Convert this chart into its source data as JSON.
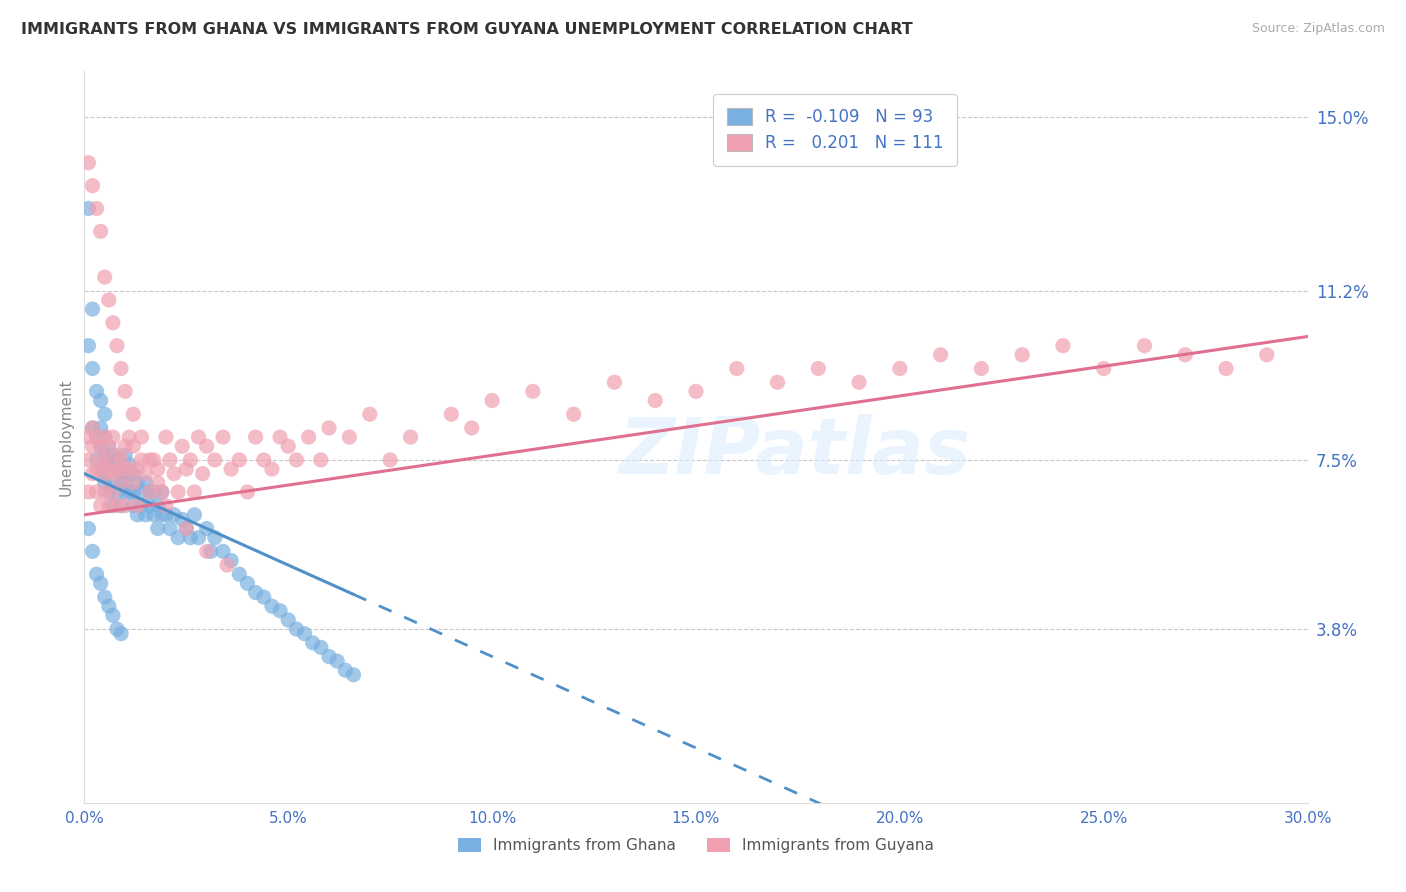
{
  "title": "IMMIGRANTS FROM GHANA VS IMMIGRANTS FROM GUYANA UNEMPLOYMENT CORRELATION CHART",
  "source": "Source: ZipAtlas.com",
  "ylabel": "Unemployment",
  "xlim": [
    0.0,
    0.3
  ],
  "ylim": [
    0.0,
    0.16
  ],
  "xticks": [
    0.0,
    0.05,
    0.1,
    0.15,
    0.2,
    0.25,
    0.3
  ],
  "xticklabels": [
    "0.0%",
    "5.0%",
    "10.0%",
    "15.0%",
    "20.0%",
    "25.0%",
    "30.0%"
  ],
  "yticks": [
    0.038,
    0.075,
    0.112,
    0.15
  ],
  "yticklabels": [
    "3.8%",
    "7.5%",
    "11.2%",
    "15.0%"
  ],
  "ghana_color": "#7ab0e0",
  "guyana_color": "#f0a0b0",
  "ghana_R": -0.109,
  "ghana_N": 93,
  "guyana_R": 0.201,
  "guyana_N": 111,
  "watermark": "ZIPatlas",
  "background_color": "#ffffff",
  "grid_color": "#c8c8c8",
  "axis_label_color": "#4472c4",
  "tick_color": "#4472c4",
  "ghana_line_color": "#5090c8",
  "guyana_line_color": "#e07090",
  "ghana_scatter_x": [
    0.001,
    0.001,
    0.002,
    0.002,
    0.002,
    0.003,
    0.003,
    0.003,
    0.004,
    0.004,
    0.004,
    0.004,
    0.005,
    0.005,
    0.005,
    0.005,
    0.005,
    0.006,
    0.006,
    0.006,
    0.006,
    0.007,
    0.007,
    0.007,
    0.007,
    0.008,
    0.008,
    0.008,
    0.009,
    0.009,
    0.009,
    0.01,
    0.01,
    0.01,
    0.01,
    0.011,
    0.011,
    0.011,
    0.012,
    0.012,
    0.012,
    0.013,
    0.013,
    0.014,
    0.014,
    0.015,
    0.015,
    0.016,
    0.016,
    0.017,
    0.017,
    0.018,
    0.018,
    0.019,
    0.019,
    0.02,
    0.021,
    0.022,
    0.023,
    0.024,
    0.025,
    0.026,
    0.027,
    0.028,
    0.03,
    0.031,
    0.032,
    0.034,
    0.036,
    0.038,
    0.04,
    0.042,
    0.044,
    0.046,
    0.048,
    0.05,
    0.052,
    0.054,
    0.056,
    0.058,
    0.06,
    0.062,
    0.064,
    0.066,
    0.001,
    0.002,
    0.003,
    0.004,
    0.005,
    0.006,
    0.007,
    0.008,
    0.009
  ],
  "ghana_scatter_y": [
    0.13,
    0.1,
    0.095,
    0.082,
    0.108,
    0.075,
    0.08,
    0.09,
    0.073,
    0.078,
    0.082,
    0.088,
    0.076,
    0.07,
    0.08,
    0.085,
    0.072,
    0.073,
    0.075,
    0.078,
    0.068,
    0.074,
    0.07,
    0.076,
    0.065,
    0.073,
    0.068,
    0.075,
    0.07,
    0.072,
    0.065,
    0.07,
    0.073,
    0.068,
    0.076,
    0.072,
    0.068,
    0.074,
    0.068,
    0.072,
    0.065,
    0.07,
    0.063,
    0.068,
    0.065,
    0.07,
    0.063,
    0.068,
    0.065,
    0.063,
    0.068,
    0.065,
    0.06,
    0.063,
    0.068,
    0.063,
    0.06,
    0.063,
    0.058,
    0.062,
    0.06,
    0.058,
    0.063,
    0.058,
    0.06,
    0.055,
    0.058,
    0.055,
    0.053,
    0.05,
    0.048,
    0.046,
    0.045,
    0.043,
    0.042,
    0.04,
    0.038,
    0.037,
    0.035,
    0.034,
    0.032,
    0.031,
    0.029,
    0.028,
    0.06,
    0.055,
    0.05,
    0.048,
    0.045,
    0.043,
    0.041,
    0.038,
    0.037
  ],
  "guyana_scatter_x": [
    0.001,
    0.001,
    0.001,
    0.002,
    0.002,
    0.002,
    0.003,
    0.003,
    0.003,
    0.004,
    0.004,
    0.004,
    0.005,
    0.005,
    0.005,
    0.005,
    0.006,
    0.006,
    0.006,
    0.007,
    0.007,
    0.007,
    0.008,
    0.008,
    0.008,
    0.009,
    0.009,
    0.01,
    0.01,
    0.01,
    0.011,
    0.011,
    0.012,
    0.012,
    0.013,
    0.013,
    0.014,
    0.015,
    0.016,
    0.017,
    0.018,
    0.019,
    0.02,
    0.021,
    0.022,
    0.023,
    0.024,
    0.025,
    0.026,
    0.027,
    0.028,
    0.029,
    0.03,
    0.032,
    0.034,
    0.036,
    0.038,
    0.04,
    0.042,
    0.044,
    0.046,
    0.048,
    0.05,
    0.052,
    0.055,
    0.058,
    0.06,
    0.065,
    0.07,
    0.075,
    0.08,
    0.09,
    0.095,
    0.1,
    0.11,
    0.12,
    0.13,
    0.14,
    0.15,
    0.16,
    0.17,
    0.18,
    0.19,
    0.2,
    0.21,
    0.22,
    0.23,
    0.24,
    0.25,
    0.26,
    0.27,
    0.28,
    0.29,
    0.001,
    0.002,
    0.003,
    0.004,
    0.005,
    0.006,
    0.007,
    0.008,
    0.009,
    0.01,
    0.012,
    0.014,
    0.016,
    0.018,
    0.02,
    0.025,
    0.03,
    0.035
  ],
  "guyana_scatter_y": [
    0.068,
    0.075,
    0.08,
    0.072,
    0.078,
    0.082,
    0.073,
    0.08,
    0.068,
    0.078,
    0.065,
    0.075,
    0.072,
    0.08,
    0.068,
    0.075,
    0.073,
    0.078,
    0.065,
    0.072,
    0.08,
    0.068,
    0.076,
    0.073,
    0.065,
    0.075,
    0.07,
    0.073,
    0.078,
    0.065,
    0.08,
    0.073,
    0.07,
    0.078,
    0.073,
    0.065,
    0.075,
    0.072,
    0.068,
    0.075,
    0.073,
    0.068,
    0.08,
    0.075,
    0.072,
    0.068,
    0.078,
    0.073,
    0.075,
    0.068,
    0.08,
    0.072,
    0.078,
    0.075,
    0.08,
    0.073,
    0.075,
    0.068,
    0.08,
    0.075,
    0.073,
    0.08,
    0.078,
    0.075,
    0.08,
    0.075,
    0.082,
    0.08,
    0.085,
    0.075,
    0.08,
    0.085,
    0.082,
    0.088,
    0.09,
    0.085,
    0.092,
    0.088,
    0.09,
    0.095,
    0.092,
    0.095,
    0.092,
    0.095,
    0.098,
    0.095,
    0.098,
    0.1,
    0.095,
    0.1,
    0.098,
    0.095,
    0.098,
    0.14,
    0.135,
    0.13,
    0.125,
    0.115,
    0.11,
    0.105,
    0.1,
    0.095,
    0.09,
    0.085,
    0.08,
    0.075,
    0.07,
    0.065,
    0.06,
    0.055,
    0.052
  ],
  "ghana_trend_x0": 0.0,
  "ghana_trend_x_solid_end": 0.066,
  "ghana_trend_x_dashed_end": 0.3,
  "guyana_trend_x0": 0.0,
  "guyana_trend_x_end": 0.3
}
